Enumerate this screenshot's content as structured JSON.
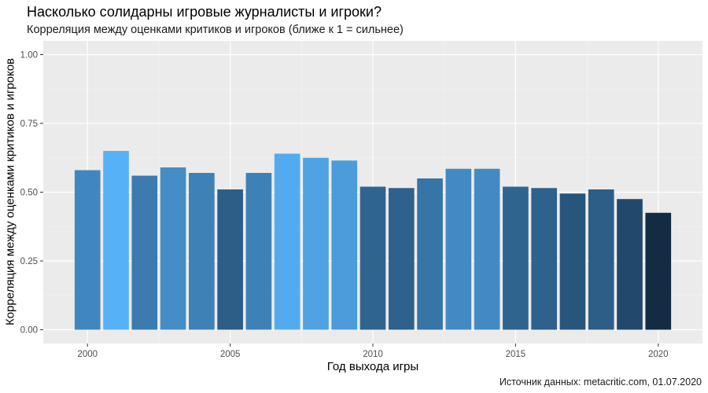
{
  "chart_data": {
    "type": "bar",
    "title": "Насколько солидарны игровые журналисты и игроки?",
    "subtitle": "Корреляция между оценками критиков и игроков (ближе к 1 = сильнее)",
    "xlabel": "Год выхода игры",
    "ylabel": "Корреляция между оценками критиков и игроков",
    "caption": "Источник данных: metacritic.com, 01.07.2020",
    "x": [
      2000,
      2001,
      2002,
      2003,
      2004,
      2005,
      2006,
      2007,
      2008,
      2009,
      2010,
      2011,
      2012,
      2013,
      2014,
      2015,
      2016,
      2017,
      2018,
      2019,
      2020
    ],
    "values": [
      0.58,
      0.65,
      0.56,
      0.59,
      0.57,
      0.51,
      0.57,
      0.64,
      0.625,
      0.615,
      0.52,
      0.515,
      0.55,
      0.585,
      0.585,
      0.52,
      0.515,
      0.495,
      0.51,
      0.475,
      0.425
    ],
    "xlim": [
      1999.5,
      2020.5
    ],
    "ylim": [
      0,
      1
    ],
    "x_ticks": [
      2000,
      2005,
      2010,
      2015,
      2020
    ],
    "x_tick_labels": [
      "2000",
      "2005",
      "2010",
      "2015",
      "2020"
    ],
    "y_ticks": [
      0,
      0.25,
      0.5,
      0.75,
      1
    ],
    "y_tick_labels": [
      "0.00",
      "0.25",
      "0.50",
      "0.75",
      "1.00"
    ],
    "grid": true,
    "legend": "none",
    "colors": {
      "panel_background": "#ebebeb",
      "grid_major": "#ffffff",
      "grid_minor": "#f4f4f4",
      "fill_low": "#132b43",
      "fill_high": "#56b1f7",
      "tick_text": "#4d4d4d",
      "tick_mark": "#333333"
    }
  }
}
